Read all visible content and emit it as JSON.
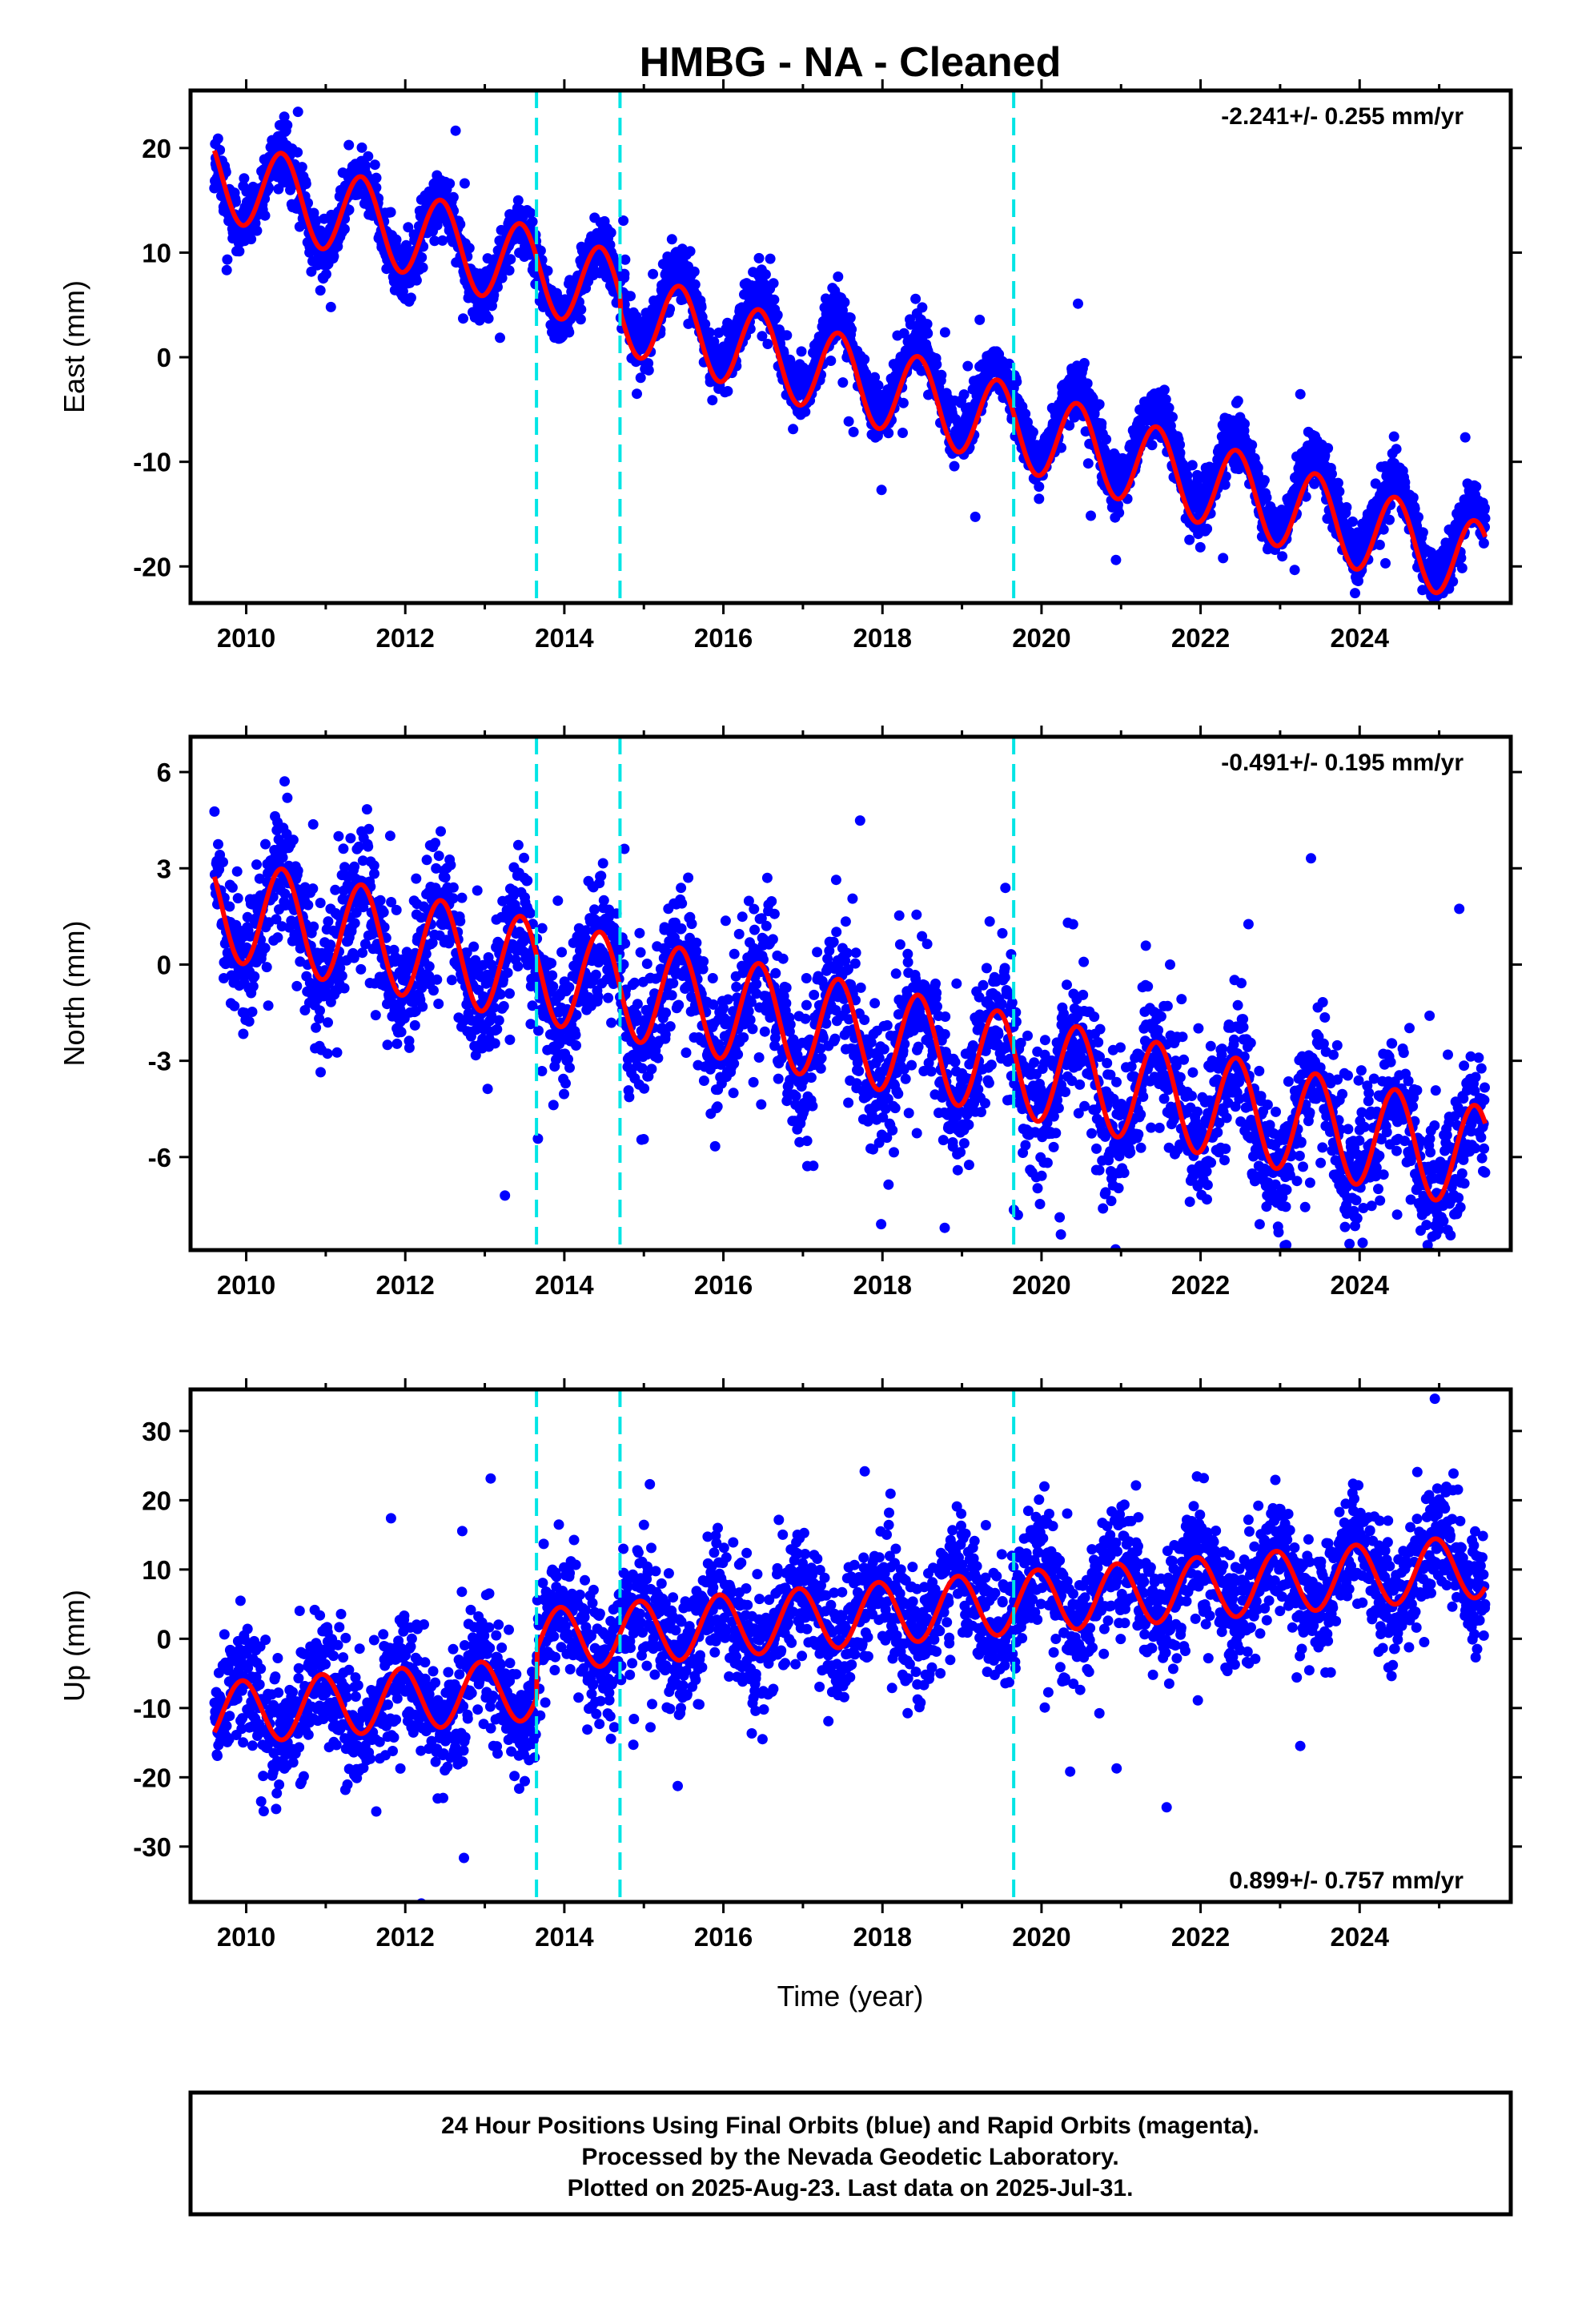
{
  "title": "HMBG  - NA - Cleaned",
  "xlabel": "Time (year)",
  "colors": {
    "data": "#0000ff",
    "model": "#ff0000",
    "offset": "#00e5e5",
    "frame": "#000000"
  },
  "footer": {
    "lines": [
      "24 Hour Positions Using Final Orbits (blue) and Rapid Orbits (magenta).",
      "Processed by the Nevada Geodetic Laboratory.",
      "Plotted on 2025-Aug-23. Last data on 2025-Jul-31."
    ]
  },
  "chart_data": [
    {
      "type": "scatter",
      "ylabel": "East (mm)",
      "rate_text": "-2.241+/- 0.255 mm/yr",
      "xlim": [
        2009.3,
        2025.9
      ],
      "ylim": [
        -23.5,
        25.5
      ],
      "xticks": [
        2010,
        2012,
        2014,
        2016,
        2018,
        2020,
        2022,
        2024
      ],
      "yticks": [
        -20,
        -10,
        0,
        10,
        20
      ],
      "offset_lines_x": [
        2013.65,
        2014.7,
        2019.65
      ],
      "series": [
        {
          "kind": "points",
          "trend": -2.241,
          "intercept": 16.5,
          "amplitude": 4.0,
          "phase": 2010.45,
          "noise": 1.3,
          "outlier_rate": 0.02,
          "outlier_scale": 3.5,
          "density": 260
        },
        {
          "kind": "model",
          "trend": -2.241,
          "intercept": 16.5,
          "amplitude": 4.0,
          "phase": 2010.45,
          "offsets": [
            [
              2014.7,
              -1.5
            ],
            [
              2019.65,
              0.0
            ]
          ]
        }
      ]
    },
    {
      "type": "scatter",
      "ylabel": "North (mm)",
      "rate_text": "-0.491+/- 0.195 mm/yr",
      "xlim": [
        2009.3,
        2025.9
      ],
      "ylim": [
        -8.9,
        7.1
      ],
      "xticks": [
        2010,
        2012,
        2014,
        2016,
        2018,
        2020,
        2022,
        2024
      ],
      "yticks": [
        -6,
        -3,
        0,
        3,
        6
      ],
      "offset_lines_x": [
        2013.65,
        2014.7,
        2019.65
      ],
      "series": [
        {
          "kind": "points",
          "trend": -0.491,
          "intercept": 1.6,
          "amplitude": 1.6,
          "phase": 2010.45,
          "noise": 1.0,
          "outlier_rate": 0.04,
          "outlier_scale": 3.0,
          "density": 200
        },
        {
          "kind": "model",
          "trend": -0.491,
          "intercept": 1.6,
          "amplitude": 1.6,
          "phase": 2010.45,
          "offsets": []
        }
      ]
    },
    {
      "type": "scatter",
      "ylabel": "Up (mm)",
      "rate_text": "0.899+/- 0.757 mm/yr",
      "xlim": [
        2009.3,
        2025.9
      ],
      "ylim": [
        -38,
        36
      ],
      "xticks": [
        2010,
        2012,
        2014,
        2016,
        2018,
        2020,
        2022,
        2024
      ],
      "yticks": [
        -30,
        -20,
        -10,
        0,
        10,
        20,
        30
      ],
      "offset_lines_x": [
        2013.65,
        2014.7,
        2019.65
      ],
      "series": [
        {
          "kind": "points",
          "trend": 0.899,
          "intercept": -10.5,
          "amplitude": 4.5,
          "phase": 2009.95,
          "noise": 4.5,
          "outlier_rate": 0.03,
          "outlier_scale": 3.0,
          "density": 200,
          "step": [
            2013.65,
            7.0
          ]
        },
        {
          "kind": "model",
          "trend": 0.899,
          "intercept": -10.5,
          "amplitude": 4.5,
          "phase": 2009.95,
          "offsets": [
            [
              2013.65,
              7.0
            ]
          ]
        }
      ]
    }
  ]
}
